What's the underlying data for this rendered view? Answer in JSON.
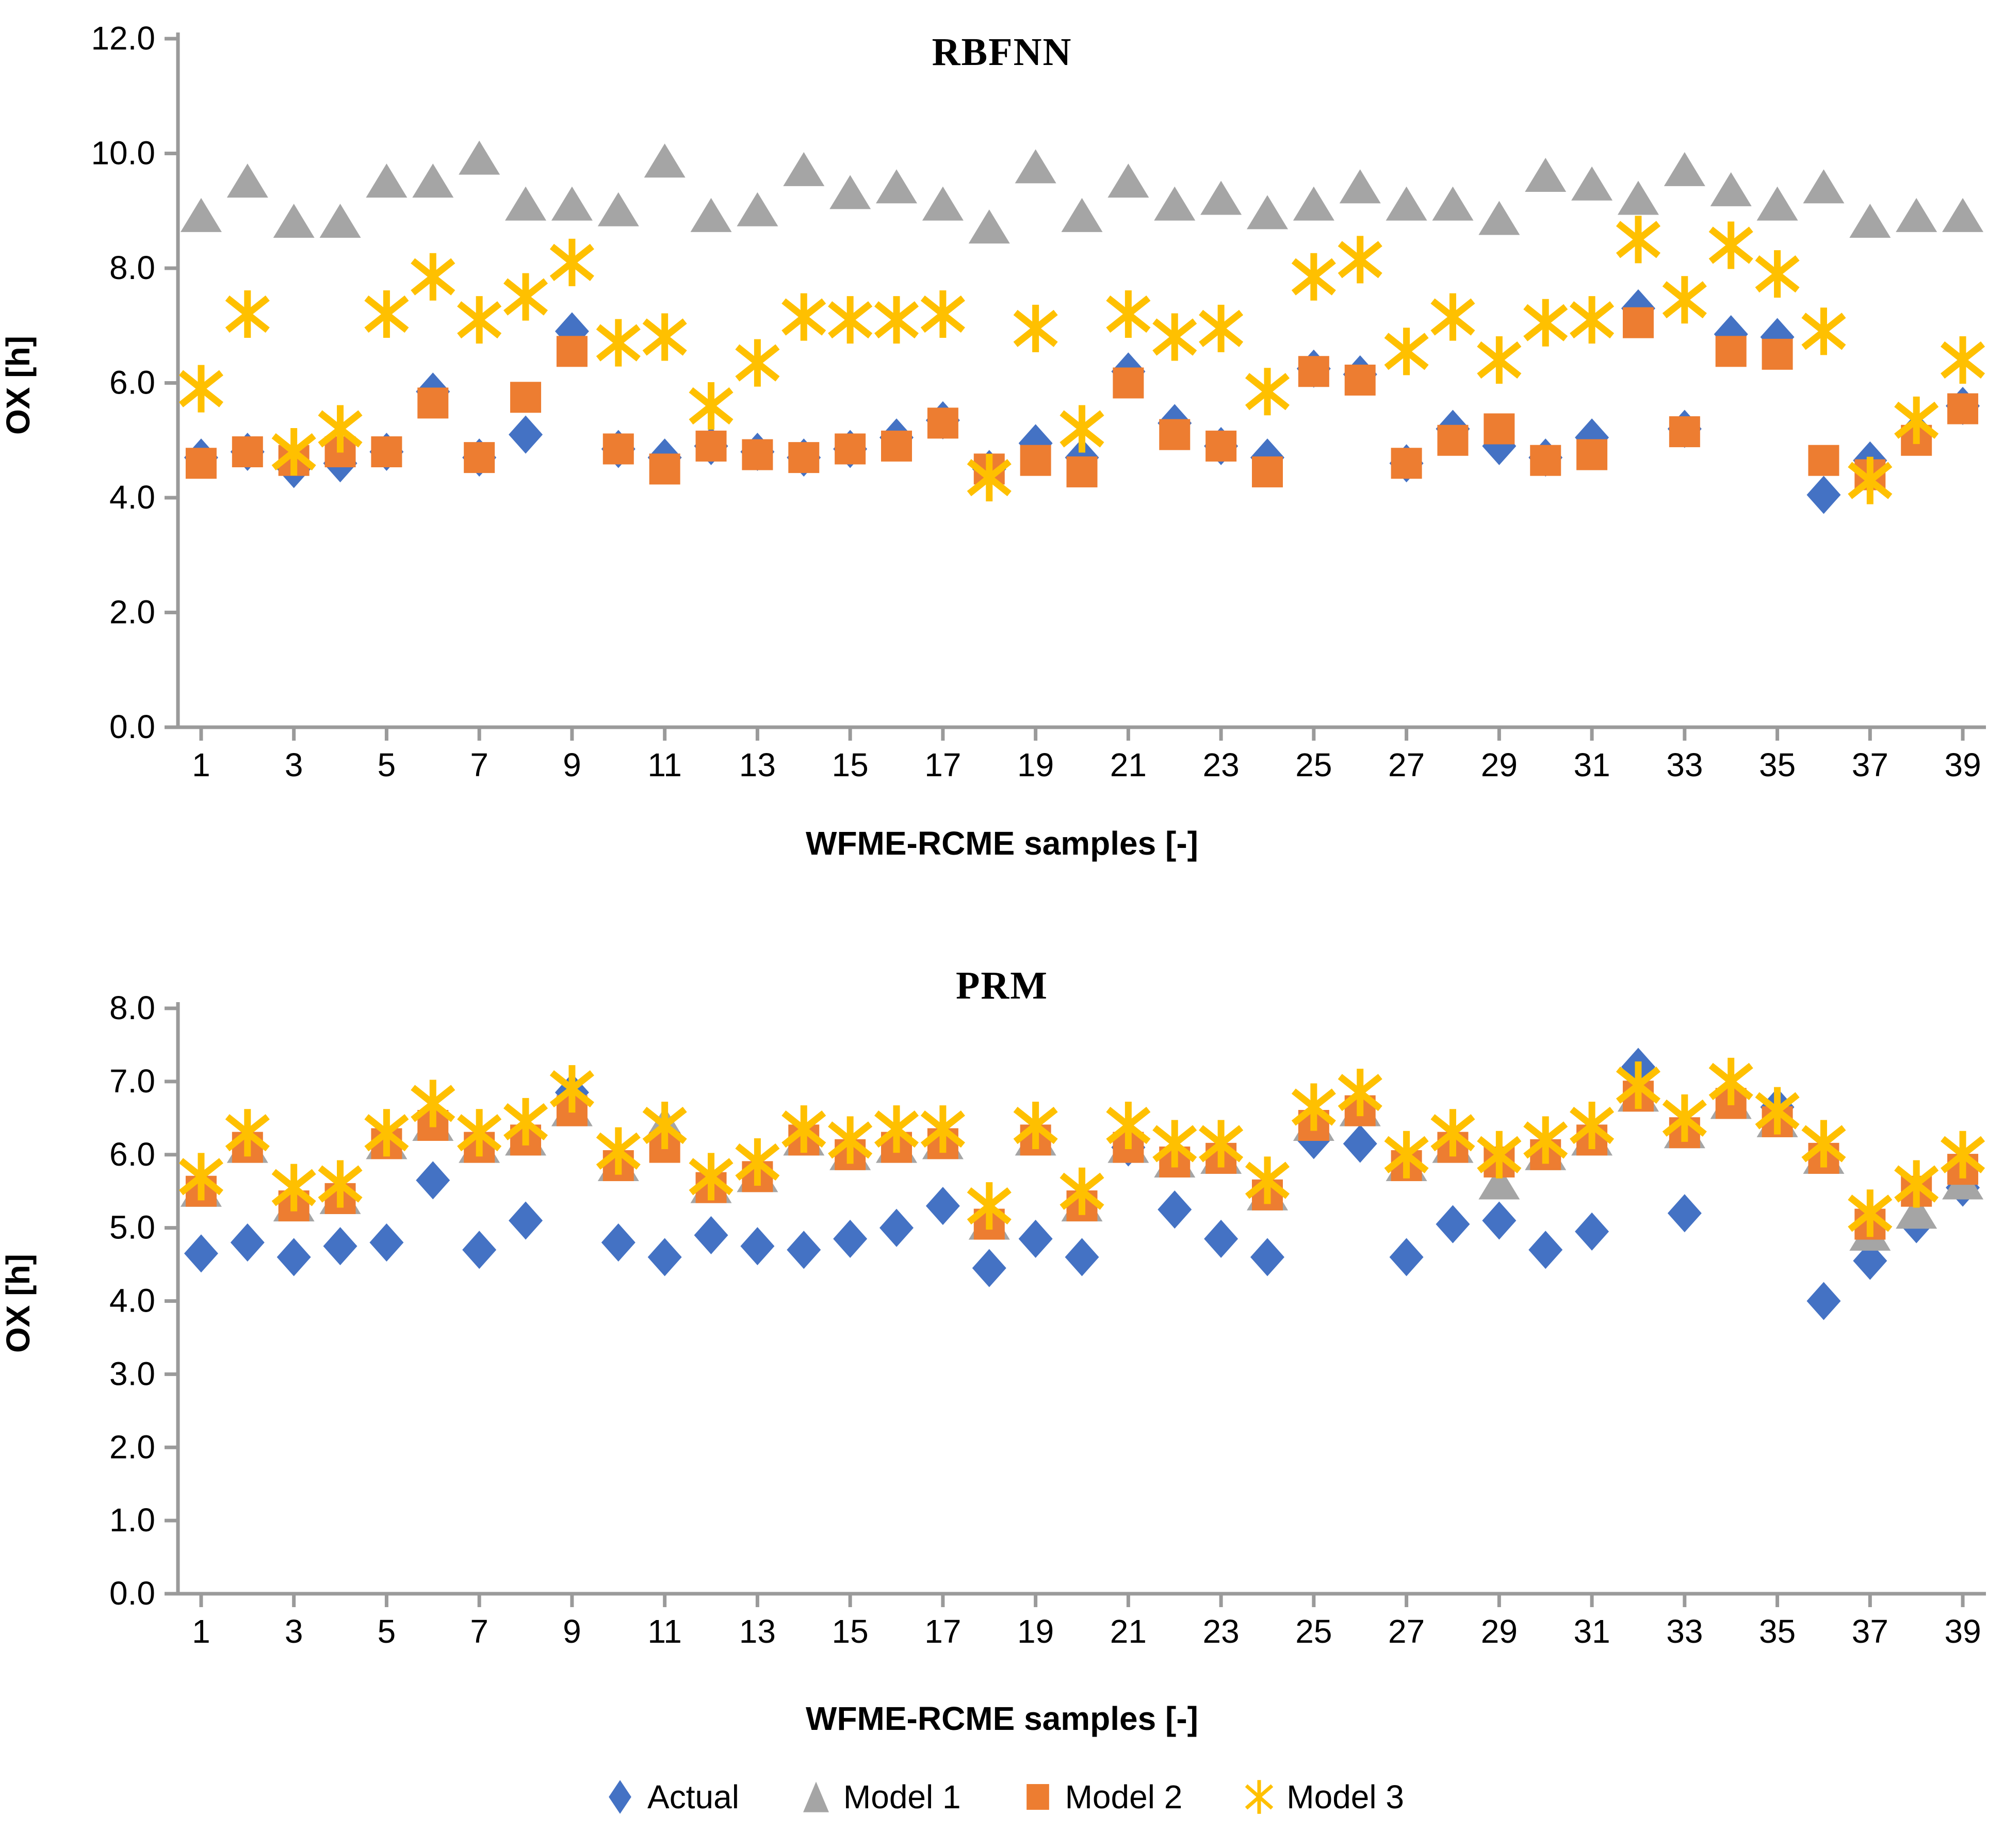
{
  "legend": {
    "items": [
      {
        "label": "Actual",
        "marker": "diamond",
        "color": "#4472C4"
      },
      {
        "label": "Model 1",
        "marker": "triangle",
        "color": "#A5A5A5"
      },
      {
        "label": "Model 2",
        "marker": "square",
        "color": "#ED7D31"
      },
      {
        "label": "Model 3",
        "marker": "star",
        "color": "#FFC000"
      }
    ]
  },
  "axis_color": "#9a9a9a",
  "chart_data": [
    {
      "type": "scatter",
      "title": "RBFNN",
      "xlabel": "WFME-RCME samples [-]",
      "ylabel": "OX [h]",
      "ylim": [
        0,
        12
      ],
      "y_tick_values": [
        0,
        2,
        4,
        6,
        8,
        10,
        12
      ],
      "y_tick_labels": [
        "0.0",
        "2.0",
        "4.0",
        "6.0",
        "8.0",
        "10.0",
        "12.0"
      ],
      "x_tick_values": [
        1,
        3,
        5,
        7,
        9,
        11,
        13,
        15,
        17,
        19,
        21,
        23,
        25,
        27,
        29,
        31,
        33,
        35,
        37,
        39
      ],
      "x_tick_labels": [
        "1",
        "3",
        "5",
        "7",
        "9",
        "11",
        "13",
        "15",
        "17",
        "19",
        "21",
        "23",
        "25",
        "27",
        "29",
        "31",
        "33",
        "35",
        "37",
        "39"
      ],
      "x_range": [
        1,
        39
      ],
      "grid": false,
      "series": [
        {
          "name": "Actual",
          "marker": "diamond",
          "color": "#4472C4",
          "values": [
            4.7,
            4.8,
            4.5,
            4.6,
            4.8,
            5.85,
            4.7,
            5.1,
            6.9,
            4.85,
            4.7,
            4.9,
            4.8,
            4.7,
            4.85,
            5.05,
            5.35,
            4.5,
            4.95,
            4.7,
            6.2,
            5.3,
            4.9,
            4.7,
            6.25,
            6.15,
            4.6,
            5.2,
            4.9,
            4.7,
            5.05,
            7.3,
            5.2,
            6.85,
            6.8,
            4.05,
            4.65,
            5.15,
            5.6
          ]
        },
        {
          "name": "Model 1",
          "marker": "triangle",
          "color": "#A5A5A5",
          "values": [
            8.9,
            9.5,
            8.8,
            8.8,
            9.5,
            9.5,
            9.9,
            9.1,
            9.1,
            9.0,
            9.85,
            8.9,
            9.0,
            9.7,
            9.3,
            9.4,
            9.1,
            8.7,
            9.75,
            8.9,
            9.5,
            9.1,
            9.2,
            8.95,
            9.1,
            9.4,
            9.1,
            9.1,
            8.85,
            9.6,
            9.45,
            9.2,
            9.7,
            9.35,
            9.1,
            9.4,
            8.8,
            8.9,
            8.9
          ]
        },
        {
          "name": "Model 2",
          "marker": "square",
          "color": "#ED7D31",
          "values": [
            4.6,
            4.8,
            4.65,
            4.8,
            4.8,
            5.65,
            4.7,
            5.75,
            6.55,
            4.85,
            4.5,
            4.9,
            4.75,
            4.7,
            4.85,
            4.9,
            5.3,
            4.5,
            4.65,
            4.45,
            6.0,
            5.1,
            4.9,
            4.45,
            6.2,
            6.05,
            4.6,
            5.0,
            5.2,
            4.65,
            4.75,
            7.05,
            5.15,
            6.55,
            6.5,
            4.65,
            4.4,
            5.0,
            5.55
          ]
        },
        {
          "name": "Model 3",
          "marker": "star",
          "color": "#FFC000",
          "values": [
            5.9,
            7.2,
            4.8,
            5.2,
            7.2,
            7.85,
            7.1,
            7.5,
            8.1,
            6.7,
            6.8,
            5.6,
            6.35,
            7.15,
            7.1,
            7.1,
            7.2,
            4.35,
            6.95,
            5.2,
            7.2,
            6.8,
            6.95,
            5.85,
            7.85,
            8.15,
            6.55,
            7.15,
            6.4,
            7.05,
            7.1,
            8.5,
            7.45,
            8.4,
            7.9,
            6.9,
            4.3,
            5.35,
            6.4
          ]
        }
      ]
    },
    {
      "type": "scatter",
      "title": "PRM",
      "xlabel": "WFME-RCME samples [-]",
      "ylabel": "OX [h]",
      "ylim": [
        0,
        8
      ],
      "y_tick_values": [
        0,
        1,
        2,
        3,
        4,
        5,
        6,
        7,
        8
      ],
      "y_tick_labels": [
        "0.0",
        "1.0",
        "2.0",
        "3.0",
        "4.0",
        "5.0",
        "6.0",
        "7.0",
        "8.0"
      ],
      "x_tick_values": [
        1,
        3,
        5,
        7,
        9,
        11,
        13,
        15,
        17,
        19,
        21,
        23,
        25,
        27,
        29,
        31,
        33,
        35,
        37,
        39
      ],
      "x_tick_labels": [
        "1",
        "3",
        "5",
        "7",
        "9",
        "11",
        "13",
        "15",
        "17",
        "19",
        "21",
        "23",
        "25",
        "27",
        "29",
        "31",
        "33",
        "35",
        "37",
        "39"
      ],
      "x_range": [
        1,
        39
      ],
      "grid": false,
      "series": [
        {
          "name": "Actual",
          "marker": "diamond",
          "color": "#4472C4",
          "values": [
            4.65,
            4.8,
            4.6,
            4.75,
            4.8,
            5.65,
            4.7,
            5.1,
            6.85,
            4.8,
            4.6,
            4.9,
            4.75,
            4.7,
            4.85,
            5.0,
            5.3,
            4.45,
            4.85,
            4.6,
            6.1,
            5.25,
            4.85,
            4.6,
            6.2,
            6.15,
            4.6,
            5.05,
            5.1,
            4.7,
            4.95,
            7.2,
            5.2,
            6.8,
            6.65,
            4.0,
            4.55,
            5.05,
            5.55
          ]
        },
        {
          "name": "Model 1",
          "marker": "triangle",
          "color": "#A5A5A5",
          "values": [
            5.5,
            6.1,
            5.3,
            5.4,
            6.15,
            6.4,
            6.1,
            6.2,
            6.6,
            5.85,
            6.4,
            5.55,
            5.7,
            6.2,
            6.0,
            6.1,
            6.15,
            5.05,
            6.2,
            5.3,
            6.1,
            5.9,
            5.95,
            5.45,
            6.4,
            6.6,
            5.85,
            6.1,
            5.6,
            6.0,
            6.2,
            6.8,
            6.3,
            6.7,
            6.45,
            5.95,
            4.9,
            5.2,
            5.6
          ]
        },
        {
          "name": "Model 2",
          "marker": "square",
          "color": "#ED7D31",
          "values": [
            5.5,
            6.1,
            5.3,
            5.4,
            6.15,
            6.4,
            6.1,
            6.2,
            6.6,
            5.85,
            6.1,
            5.55,
            5.7,
            6.2,
            6.0,
            6.1,
            6.15,
            5.05,
            6.2,
            5.3,
            6.1,
            5.9,
            5.95,
            5.45,
            6.4,
            6.6,
            5.85,
            6.1,
            5.9,
            6.0,
            6.2,
            6.8,
            6.3,
            6.7,
            6.45,
            5.95,
            5.05,
            5.5,
            5.8
          ]
        },
        {
          "name": "Model 3",
          "marker": "star",
          "color": "#FFC000",
          "values": [
            5.7,
            6.3,
            5.55,
            5.6,
            6.3,
            6.7,
            6.3,
            6.45,
            6.9,
            6.05,
            6.4,
            5.7,
            5.9,
            6.35,
            6.2,
            6.35,
            6.35,
            5.3,
            6.4,
            5.5,
            6.4,
            6.15,
            6.15,
            5.65,
            6.65,
            6.85,
            6.0,
            6.3,
            6.0,
            6.2,
            6.4,
            6.95,
            6.5,
            7.0,
            6.6,
            6.15,
            5.2,
            5.6,
            6.0
          ]
        }
      ]
    }
  ]
}
